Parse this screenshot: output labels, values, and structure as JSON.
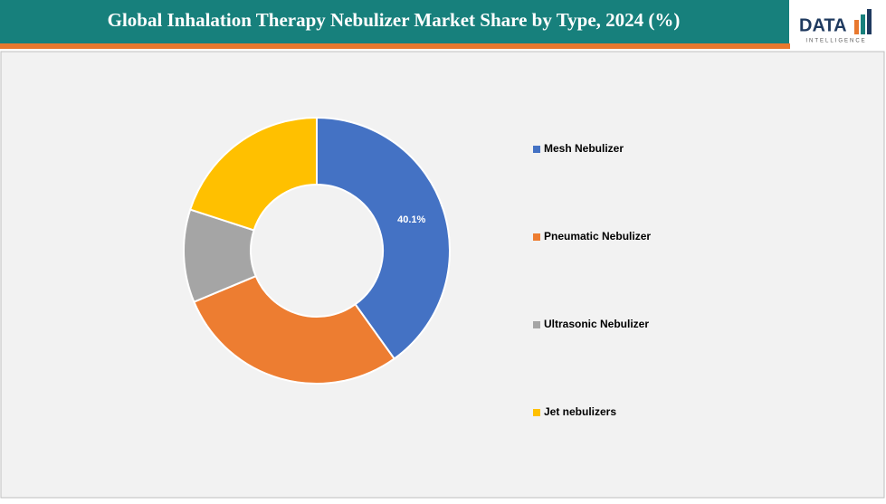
{
  "chart_data": {
    "type": "donut",
    "title": "Global Inhalation Therapy Nebulizer Market Share by Type, 2024 (%)",
    "categories": [
      "Mesh Nebulizer",
      "Pneumatic Nebulizer",
      "Ultrasonic Nebulizer",
      "Jet nebulizers"
    ],
    "values": [
      40.1,
      28.6,
      11.3,
      20.0
    ],
    "value_labels": [
      "40.1%",
      null,
      null,
      null
    ],
    "colors": [
      "#4472c4",
      "#ed7d31",
      "#a5a5a5",
      "#ffc000"
    ],
    "legend": "right"
  },
  "logo": {
    "name": "DATA",
    "tagline": "INTELLIGENCE"
  }
}
